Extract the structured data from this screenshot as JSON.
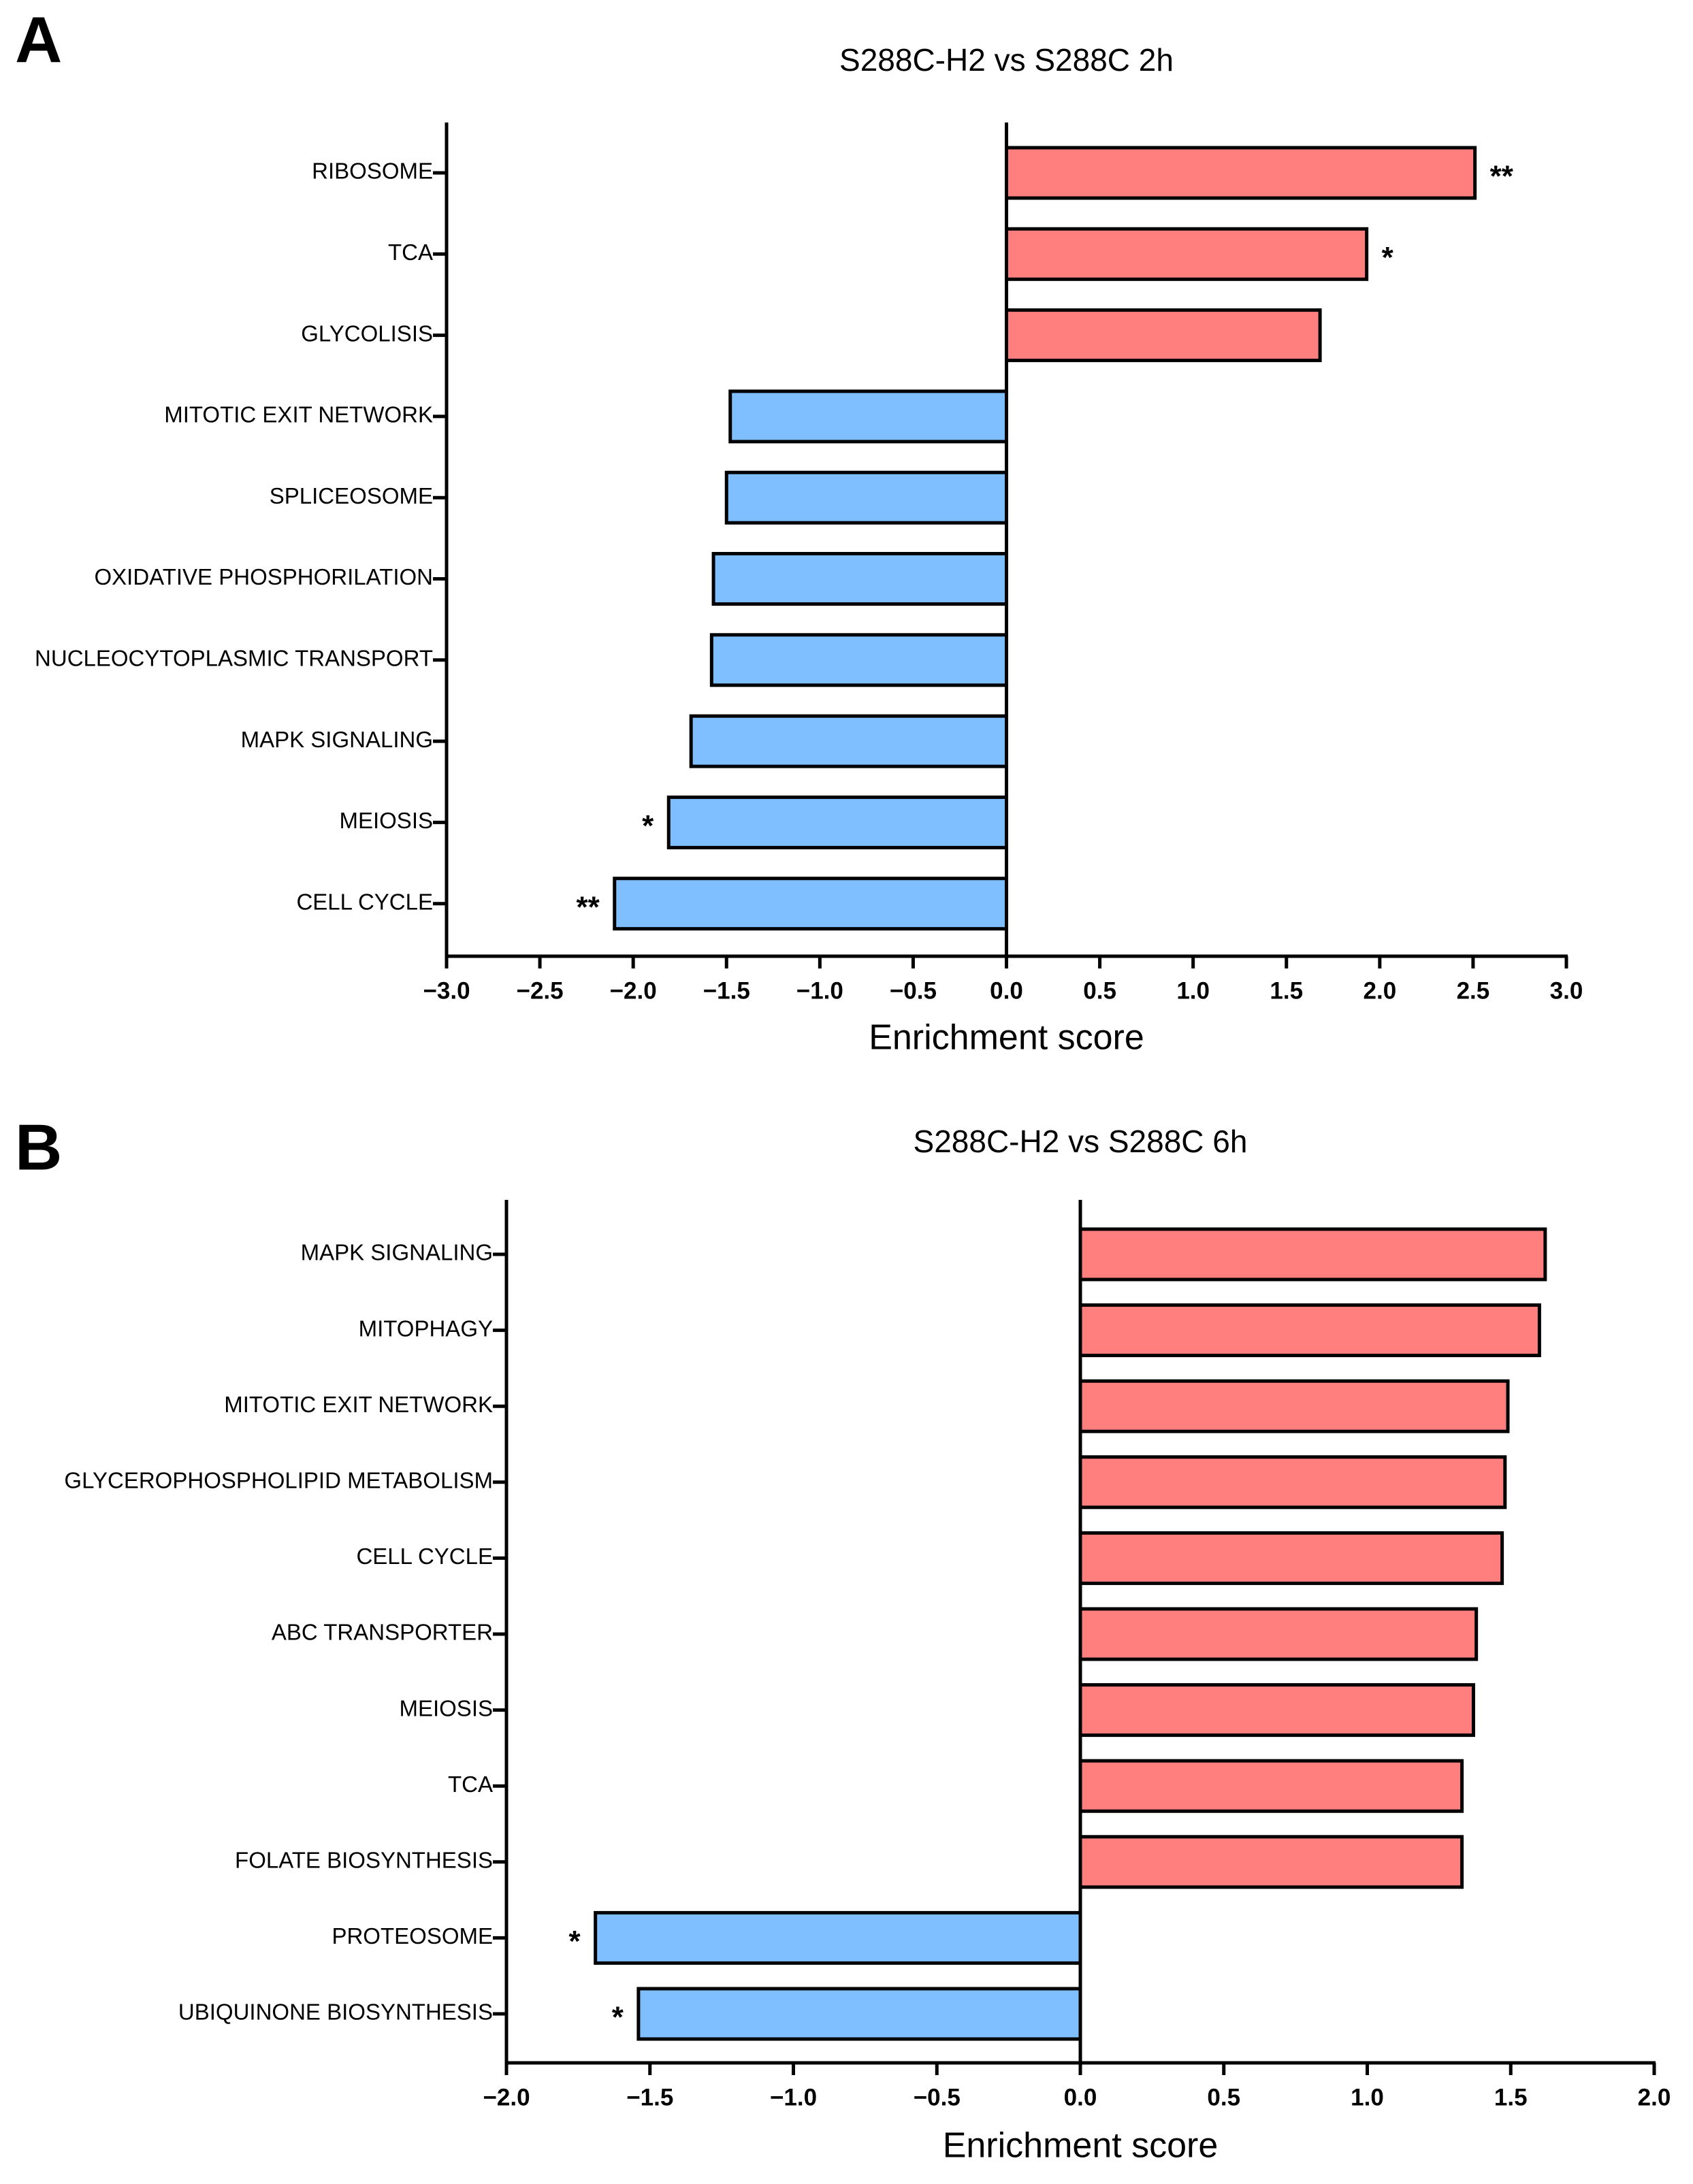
{
  "chart_data": [
    {
      "type": "hbar",
      "panel": "A",
      "title": "S288C-H2 vs S288C 2h",
      "x_label": "Enrichment score",
      "categories": [
        "RIBOSOME",
        "TCA",
        "GLYCOLISIS",
        "MITOTIC EXIT NETWORK",
        "SPLICEOSOME",
        "OXIDATIVE PHOSPHORILATION",
        "NUCLEOCYTOPLASMIC TRANSPORT",
        "MAPK SIGNALING",
        "MEIOSIS",
        "CELL CYCLE"
      ],
      "values": [
        2.51,
        1.93,
        1.68,
        -1.48,
        -1.5,
        -1.57,
        -1.58,
        -1.69,
        -1.81,
        -2.1
      ],
      "significance": [
        "**",
        "*",
        null,
        null,
        null,
        null,
        null,
        null,
        "*",
        "**"
      ],
      "positive_color": "#ff7f7f",
      "negative_color": "#7fbfff",
      "xlim": [
        -3,
        3
      ],
      "xticks": [
        {
          "value": -3,
          "label": "−3.0"
        },
        {
          "value": -2.5,
          "label": "−2.5"
        },
        {
          "value": -2,
          "label": "−2.0"
        },
        {
          "value": -1.5,
          "label": "−1.5"
        },
        {
          "value": -1,
          "label": "−1.0"
        },
        {
          "value": -0.5,
          "label": "−0.5"
        },
        {
          "value": 0,
          "label": "0.0"
        },
        {
          "value": 0.5,
          "label": "0.5"
        },
        {
          "value": 1,
          "label": "1.0"
        },
        {
          "value": 1.5,
          "label": "1.5"
        },
        {
          "value": 2,
          "label": "2.0"
        },
        {
          "value": 2.5,
          "label": "2.5"
        },
        {
          "value": 3,
          "label": "3.0"
        }
      ]
    },
    {
      "type": "hbar",
      "panel": "B",
      "title": "S288C-H2 vs S288C 6h",
      "x_label": "Enrichment score",
      "categories": [
        "MAPK SIGNALING",
        "MITOPHAGY",
        "MITOTIC EXIT NETWORK",
        "GLYCEROPHOSPHOLIPID METABOLISM",
        "CELL CYCLE",
        "ABC TRANSPORTER",
        "MEIOSIS",
        "TCA",
        "FOLATE BIOSYNTHESIS",
        "PROTEOSOME",
        "UBIQUINONE BIOSYNTHESIS"
      ],
      "values": [
        1.62,
        1.6,
        1.49,
        1.48,
        1.47,
        1.38,
        1.37,
        1.33,
        1.33,
        -1.69,
        -1.54
      ],
      "significance": [
        null,
        null,
        null,
        null,
        null,
        null,
        null,
        null,
        null,
        "*",
        "*"
      ],
      "positive_color": "#ff7f7f",
      "negative_color": "#7fbfff",
      "xlim": [
        -2,
        2
      ],
      "xticks": [
        {
          "value": -2,
          "label": "−2.0"
        },
        {
          "value": -1.5,
          "label": "−1.5"
        },
        {
          "value": -1,
          "label": "−1.0"
        },
        {
          "value": -0.5,
          "label": "−0.5"
        },
        {
          "value": 0,
          "label": "0.0"
        },
        {
          "value": 0.5,
          "label": "0.5"
        },
        {
          "value": 1,
          "label": "1.0"
        },
        {
          "value": 1.5,
          "label": "1.5"
        },
        {
          "value": 2,
          "label": "2.0"
        }
      ]
    }
  ]
}
